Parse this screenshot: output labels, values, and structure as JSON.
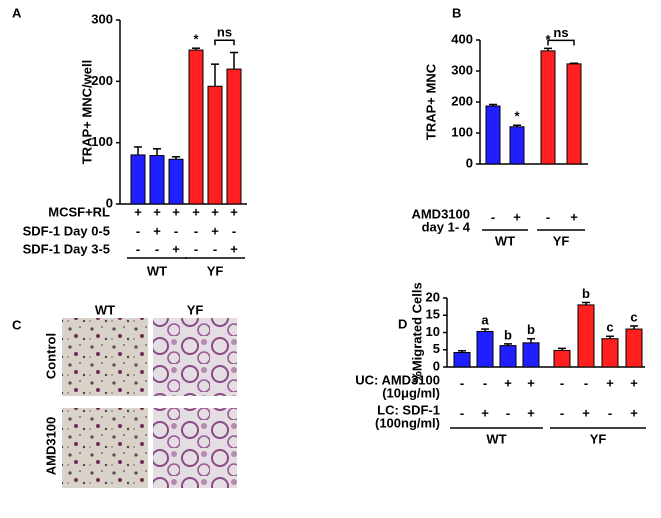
{
  "chart_data": [
    {
      "type": "bar",
      "panel": "A",
      "ylabel": "TRAP+ MNC/well",
      "values": [
        80,
        79,
        73,
        251,
        192,
        220
      ],
      "errors": [
        13,
        11,
        4,
        3,
        36,
        27
      ],
      "colors": [
        "#1f1fff",
        "#1f1fff",
        "#1f1fff",
        "#ff1f1f",
        "#ff1f1f",
        "#ff1f1f"
      ],
      "annotations": [
        null,
        null,
        null,
        "*",
        null,
        null
      ],
      "brackets": [
        {
          "label": "ns",
          "bars": [
            4,
            5
          ]
        }
      ],
      "conditions": [
        {
          "label": "MCSF+RL",
          "signs": [
            "+",
            "+",
            "+",
            "+",
            "+",
            "+"
          ]
        },
        {
          "label": "SDF-1 Day 0-5",
          "signs": [
            "-",
            "+",
            "-",
            "-",
            "+",
            "-"
          ]
        },
        {
          "label": "SDF-1 Day 3-5",
          "signs": [
            "-",
            "-",
            "+",
            "-",
            "-",
            "+"
          ]
        }
      ],
      "groups": [
        {
          "name": "WT",
          "bars": [
            0,
            2
          ]
        },
        {
          "name": "YF",
          "bars": [
            3,
            5
          ]
        }
      ],
      "ylim": [
        0,
        300
      ],
      "yticks": [
        0,
        100,
        200,
        300
      ]
    },
    {
      "type": "bar",
      "panel": "B",
      "ylabel": "TRAP+ MNC",
      "values": [
        187,
        120,
        365,
        323
      ],
      "errors": [
        5,
        5,
        8,
        2
      ],
      "colors": [
        "#1f1fff",
        "#1f1fff",
        "#ff1f1f",
        "#ff1f1f"
      ],
      "annotations": [
        null,
        "*",
        "*",
        null
      ],
      "brackets": [
        {
          "label": "ns",
          "bars": [
            2,
            3
          ]
        }
      ],
      "conditions": [
        {
          "label": [
            "AMD3100",
            "day 1- 4"
          ],
          "signs": [
            "-",
            "+",
            "-",
            "+"
          ]
        }
      ],
      "groups": [
        {
          "name": "WT",
          "bars": [
            0,
            1
          ]
        },
        {
          "name": "YF",
          "bars": [
            2,
            3
          ]
        }
      ],
      "ylim": [
        0,
        400
      ],
      "yticks": [
        0,
        100,
        200,
        300,
        400
      ]
    },
    {
      "type": "image-grid",
      "panel": "C",
      "columns": [
        "WT",
        "YF"
      ],
      "rows": [
        "Control",
        "AMD3100"
      ]
    },
    {
      "type": "bar",
      "panel": "D",
      "ylabel": "%Migrated Cells",
      "values": [
        4.2,
        10.3,
        6.2,
        7.0,
        4.8,
        18.0,
        8.2,
        11.0
      ],
      "errors": [
        0.5,
        0.7,
        0.5,
        1.2,
        0.6,
        0.7,
        0.7,
        0.9
      ],
      "colors": [
        "#1f1fff",
        "#1f1fff",
        "#1f1fff",
        "#1f1fff",
        "#ff1f1f",
        "#ff1f1f",
        "#ff1f1f",
        "#ff1f1f"
      ],
      "annotations": [
        null,
        "a",
        "b",
        "b",
        null,
        "b",
        "c",
        "c"
      ],
      "conditions": [
        {
          "label": [
            "UC: AMD3100",
            "(10μg/ml)"
          ],
          "signs": [
            "-",
            "-",
            "+",
            "+",
            "-",
            "-",
            "+",
            "+"
          ]
        },
        {
          "label": [
            "LC: SDF-1",
            "(100ng/ml)"
          ],
          "signs": [
            "-",
            "+",
            "-",
            "+",
            "-",
            "+",
            "-",
            "+"
          ]
        }
      ],
      "groups": [
        {
          "name": "WT",
          "bars": [
            0,
            3
          ]
        },
        {
          "name": "YF",
          "bars": [
            4,
            7
          ]
        }
      ],
      "ylim": [
        0,
        20
      ],
      "yticks": [
        0,
        5,
        10,
        15,
        20
      ]
    }
  ]
}
